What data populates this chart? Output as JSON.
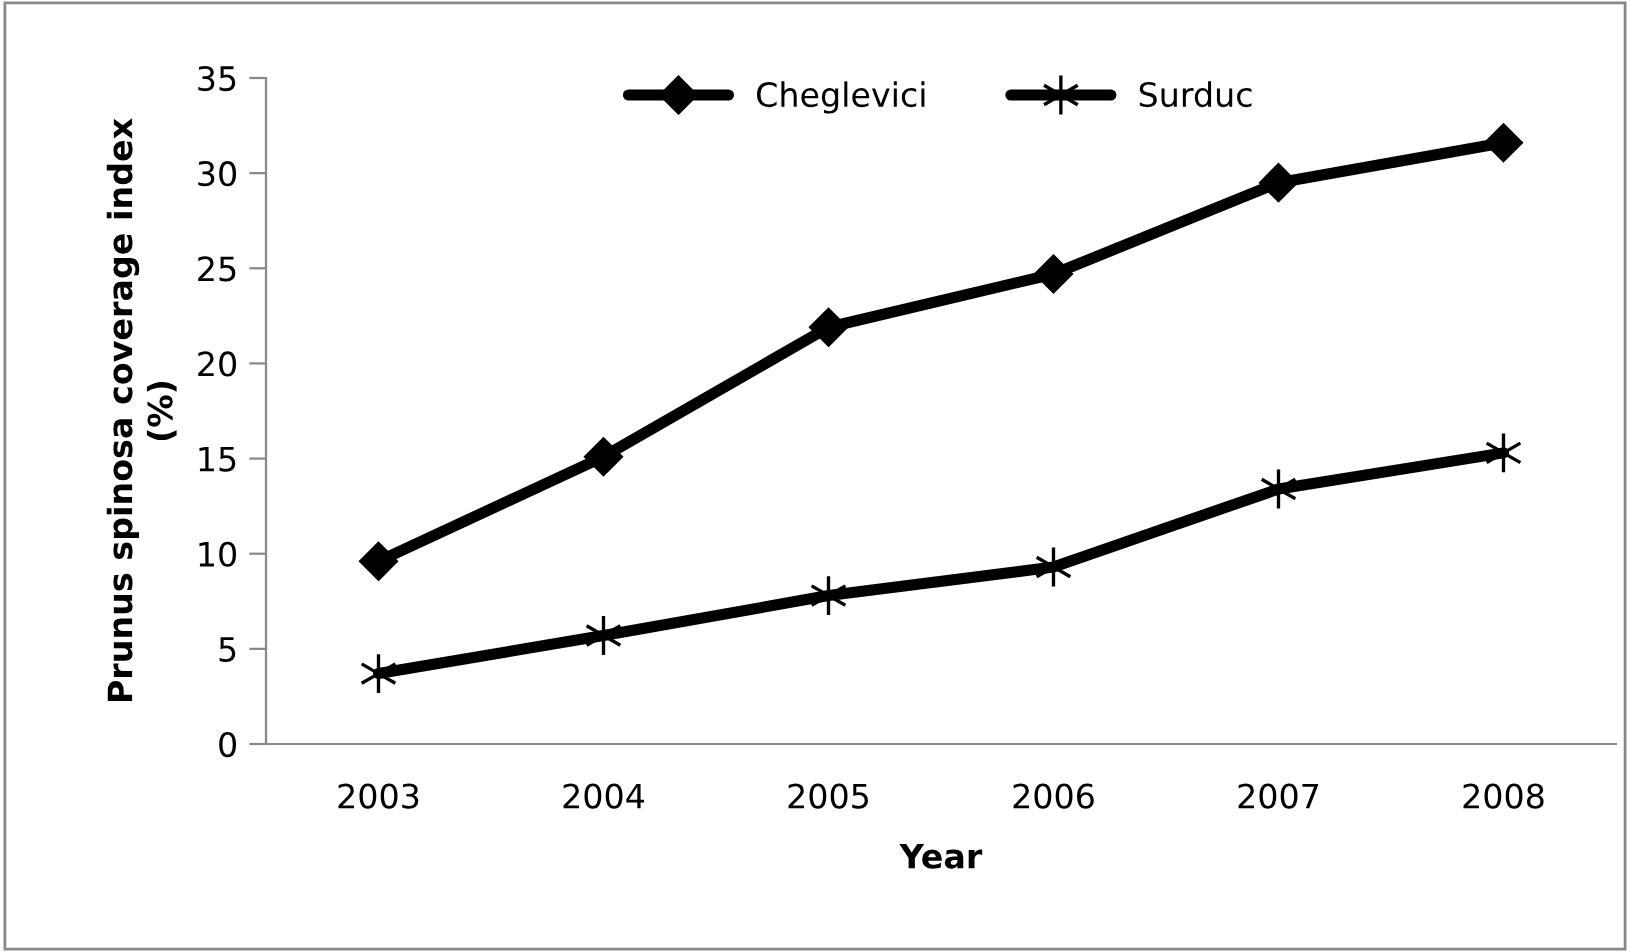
{
  "chart_data": {
    "type": "line",
    "xlabel": "Year",
    "ylabel": "Prunus spinosa coverage index\n(%)",
    "categories": [
      "2003",
      "2004",
      "2005",
      "2006",
      "2007",
      "2008"
    ],
    "series": [
      {
        "name": "Cheglevici",
        "color": "#000000",
        "marker": "diamond",
        "values": [
          9.6,
          15.1,
          21.9,
          24.7,
          29.5,
          31.6
        ]
      },
      {
        "name": "Surduc",
        "color": "#000000",
        "marker": "cross",
        "values": [
          3.7,
          5.7,
          7.8,
          9.3,
          13.4,
          15.3
        ]
      }
    ],
    "ylim": [
      0,
      35
    ],
    "yticks": [
      0,
      5,
      10,
      15,
      20,
      25,
      30,
      35
    ],
    "grid": false,
    "legend": "top",
    "line_style": "solid"
  }
}
